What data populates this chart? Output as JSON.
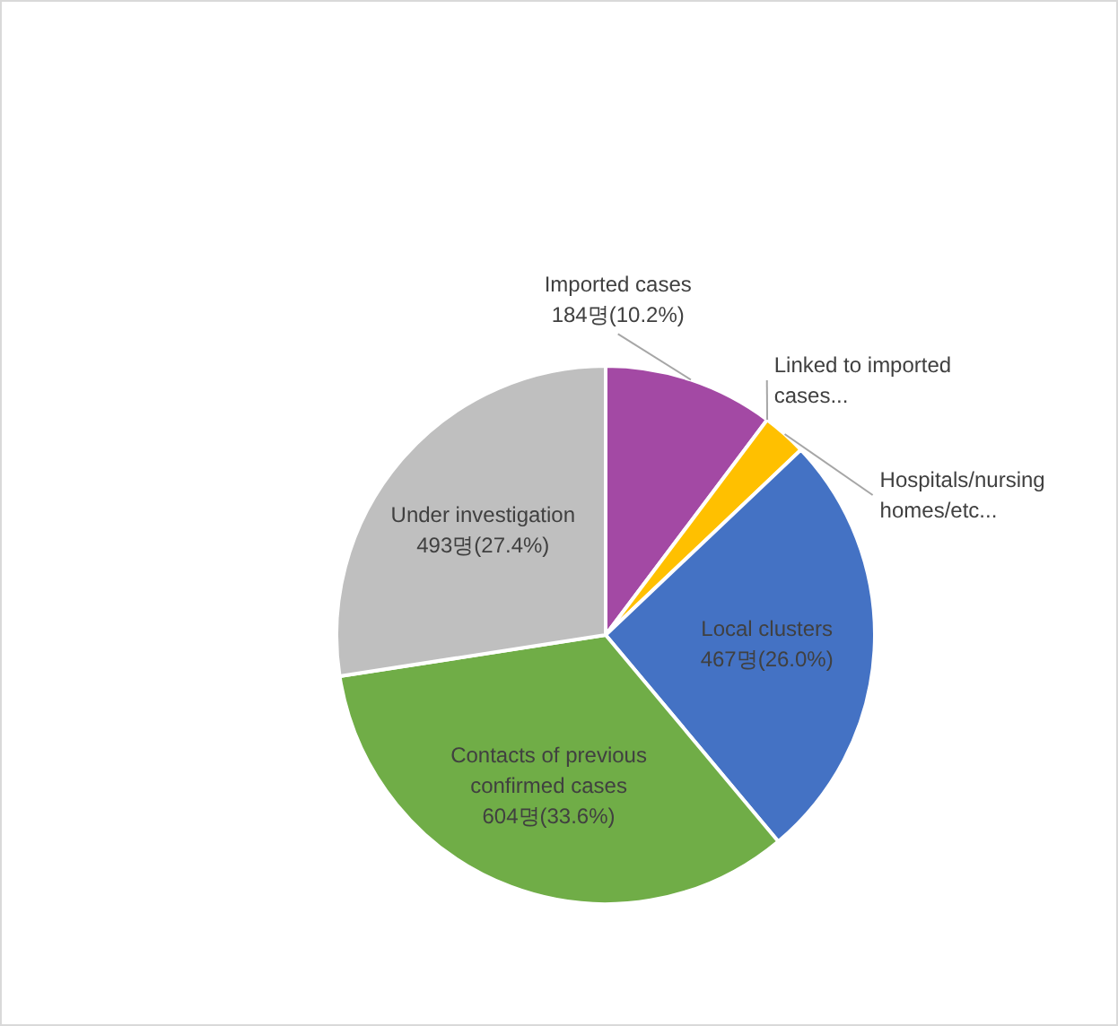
{
  "chart_data": {
    "type": "pie",
    "categories": [
      "Imported cases",
      "Linked to imported cases...",
      "Hospitals/nursing homes/etc...",
      "Local clusters",
      "Contacts of previous confirmed cases",
      "Under investigation"
    ],
    "values": [
      184,
      0,
      48,
      467,
      604,
      493
    ],
    "colors": [
      "#a349a4",
      null,
      "#ffc000",
      "#4472c4",
      "#70ad47",
      "#bfbfbf"
    ],
    "value_labels": [
      "184명(10.2%)",
      null,
      null,
      "467명(26.0%)",
      "604명(33.6%)",
      "493명(27.4%)"
    ]
  }
}
